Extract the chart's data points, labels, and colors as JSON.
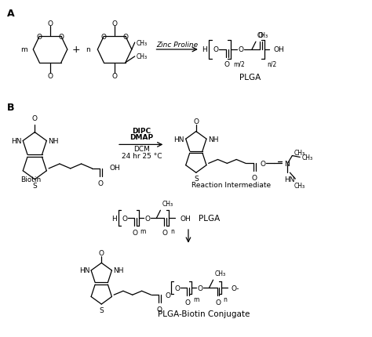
{
  "background_color": "#ffffff",
  "label_A": "A",
  "label_B": "B",
  "zinc_proline": "Zinc Proline",
  "dipc": "DIPC",
  "dmap": "DMAP",
  "dcm": "DCM",
  "dcm2": "24 hr 25 °C",
  "plga_label1": "PLGA",
  "plga_label2": "PLGA",
  "biotin_label": "Biotin",
  "reaction_intermediate": "Reaction Intermediate",
  "plga_biotin": "PLGA-Biotin Conjugate",
  "figsize": [
    4.74,
    4.31
  ],
  "dpi": 100
}
